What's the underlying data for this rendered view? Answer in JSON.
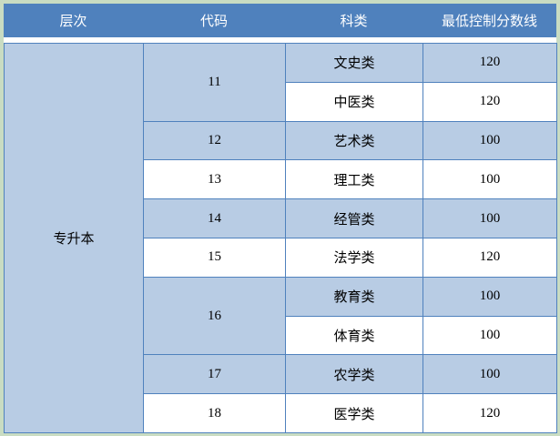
{
  "colors": {
    "header_bg": "#4f81bd",
    "header_text": "#ffffff",
    "shaded_row_bg": "#b8cce4",
    "white_row_bg": "#ffffff",
    "border": "#4f81bd",
    "frame_bg": "#c9dcc2",
    "body_text": "#000000"
  },
  "header": {
    "columns": [
      "层次",
      "代码",
      "科类",
      "最低控制分数线"
    ]
  },
  "table": {
    "level": "专升本",
    "rows": [
      {
        "code": "11",
        "category": "文史类",
        "score": "120"
      },
      {
        "category": "中医类",
        "score": "120"
      },
      {
        "code": "12",
        "category": "艺术类",
        "score": "100"
      },
      {
        "code": "13",
        "category": "理工类",
        "score": "100"
      },
      {
        "code": "14",
        "category": "经管类",
        "score": "100"
      },
      {
        "code": "15",
        "category": "法学类",
        "score": "120"
      },
      {
        "code": "16",
        "category": "教育类",
        "score": "100"
      },
      {
        "category": "体育类",
        "score": "100"
      },
      {
        "code": "17",
        "category": "农学类",
        "score": "100"
      },
      {
        "code": "18",
        "category": "医学类",
        "score": "120"
      }
    ]
  }
}
